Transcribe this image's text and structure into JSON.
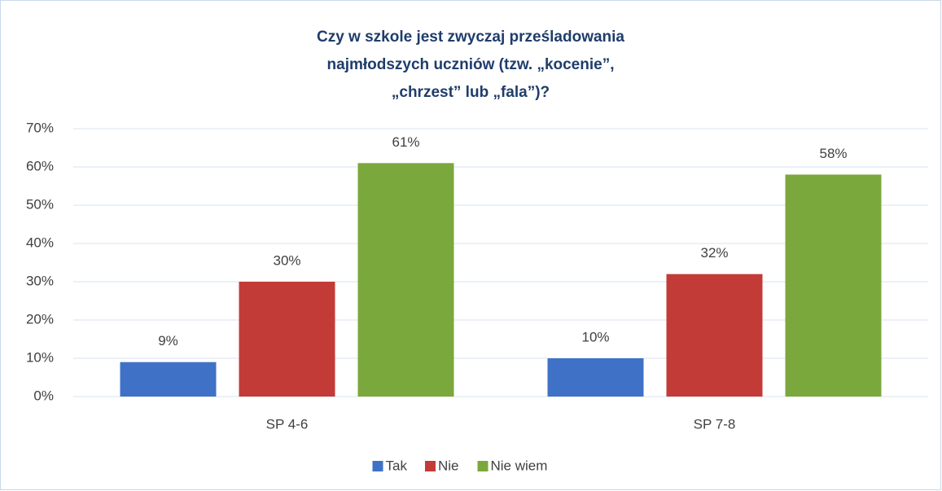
{
  "chart_data": {
    "type": "bar",
    "title": [
      "Czy w szkole jest zwyczaj prześladowania",
      "najmłodszych uczniów (tzw. „kocenie”,",
      "„chrzest” lub „fala”)?"
    ],
    "categories": [
      "SP 4-6",
      "SP 7-8"
    ],
    "series": [
      {
        "name": "Tak",
        "color": "#3f72c6",
        "values": [
          9,
          10
        ],
        "value_labels": [
          "9%",
          "10%"
        ]
      },
      {
        "name": "Nie",
        "color": "#c33b37",
        "values": [
          30,
          32
        ],
        "value_labels": [
          "30%",
          "32%"
        ]
      },
      {
        "name": "Nie wiem",
        "color": "#7ba83c",
        "values": [
          61,
          58
        ],
        "value_labels": [
          "61%",
          "58%"
        ]
      }
    ],
    "ylim": [
      0,
      70
    ],
    "yticks": [
      {
        "value": 0,
        "label": "0%"
      },
      {
        "value": 10,
        "label": "10%"
      },
      {
        "value": 20,
        "label": "20%"
      },
      {
        "value": 30,
        "label": "30%"
      },
      {
        "value": 40,
        "label": "40%"
      },
      {
        "value": 50,
        "label": "50%"
      },
      {
        "value": 60,
        "label": "60%"
      },
      {
        "value": 70,
        "label": "70%"
      }
    ],
    "grid": true,
    "legend": "bottom"
  }
}
